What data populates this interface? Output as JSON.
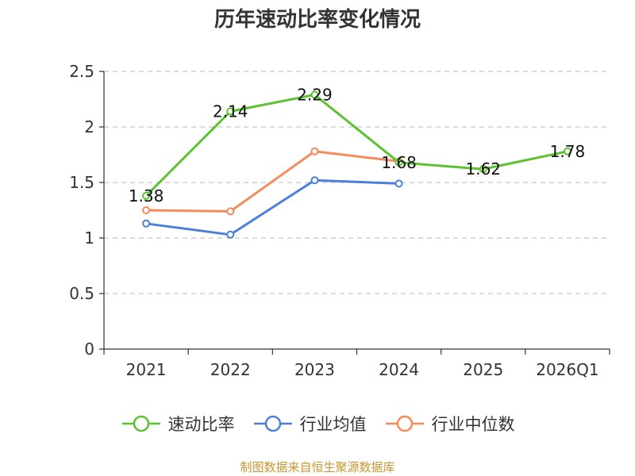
{
  "chart_data": {
    "type": "line",
    "title": "历年速动比率变化情况",
    "categories": [
      "2021",
      "2022",
      "2023",
      "2024",
      "2025",
      "2026Q1"
    ],
    "ylim": [
      0,
      2.5
    ],
    "yticks": [
      "0",
      "0.5",
      "1",
      "1.5",
      "2",
      "2.5"
    ],
    "grid": true,
    "legend_position": "bottom",
    "series": [
      {
        "name": "速动比率",
        "color": "#5dc22f",
        "labels": true,
        "values": [
          1.38,
          2.14,
          2.29,
          1.68,
          1.62,
          1.78
        ],
        "value_labels": [
          "1.38",
          "2.14",
          "2.29",
          "1.68",
          "1.62",
          "1.78"
        ]
      },
      {
        "name": "行业均值",
        "color": "#4d7fdc",
        "labels": false,
        "values": [
          1.13,
          1.03,
          1.52,
          1.49,
          null,
          null
        ]
      },
      {
        "name": "行业中位数",
        "color": "#f58b5b",
        "labels": false,
        "values": [
          1.25,
          1.24,
          1.78,
          1.69,
          null,
          null
        ]
      }
    ]
  },
  "footer": "制图数据来自恒生聚源数据库"
}
